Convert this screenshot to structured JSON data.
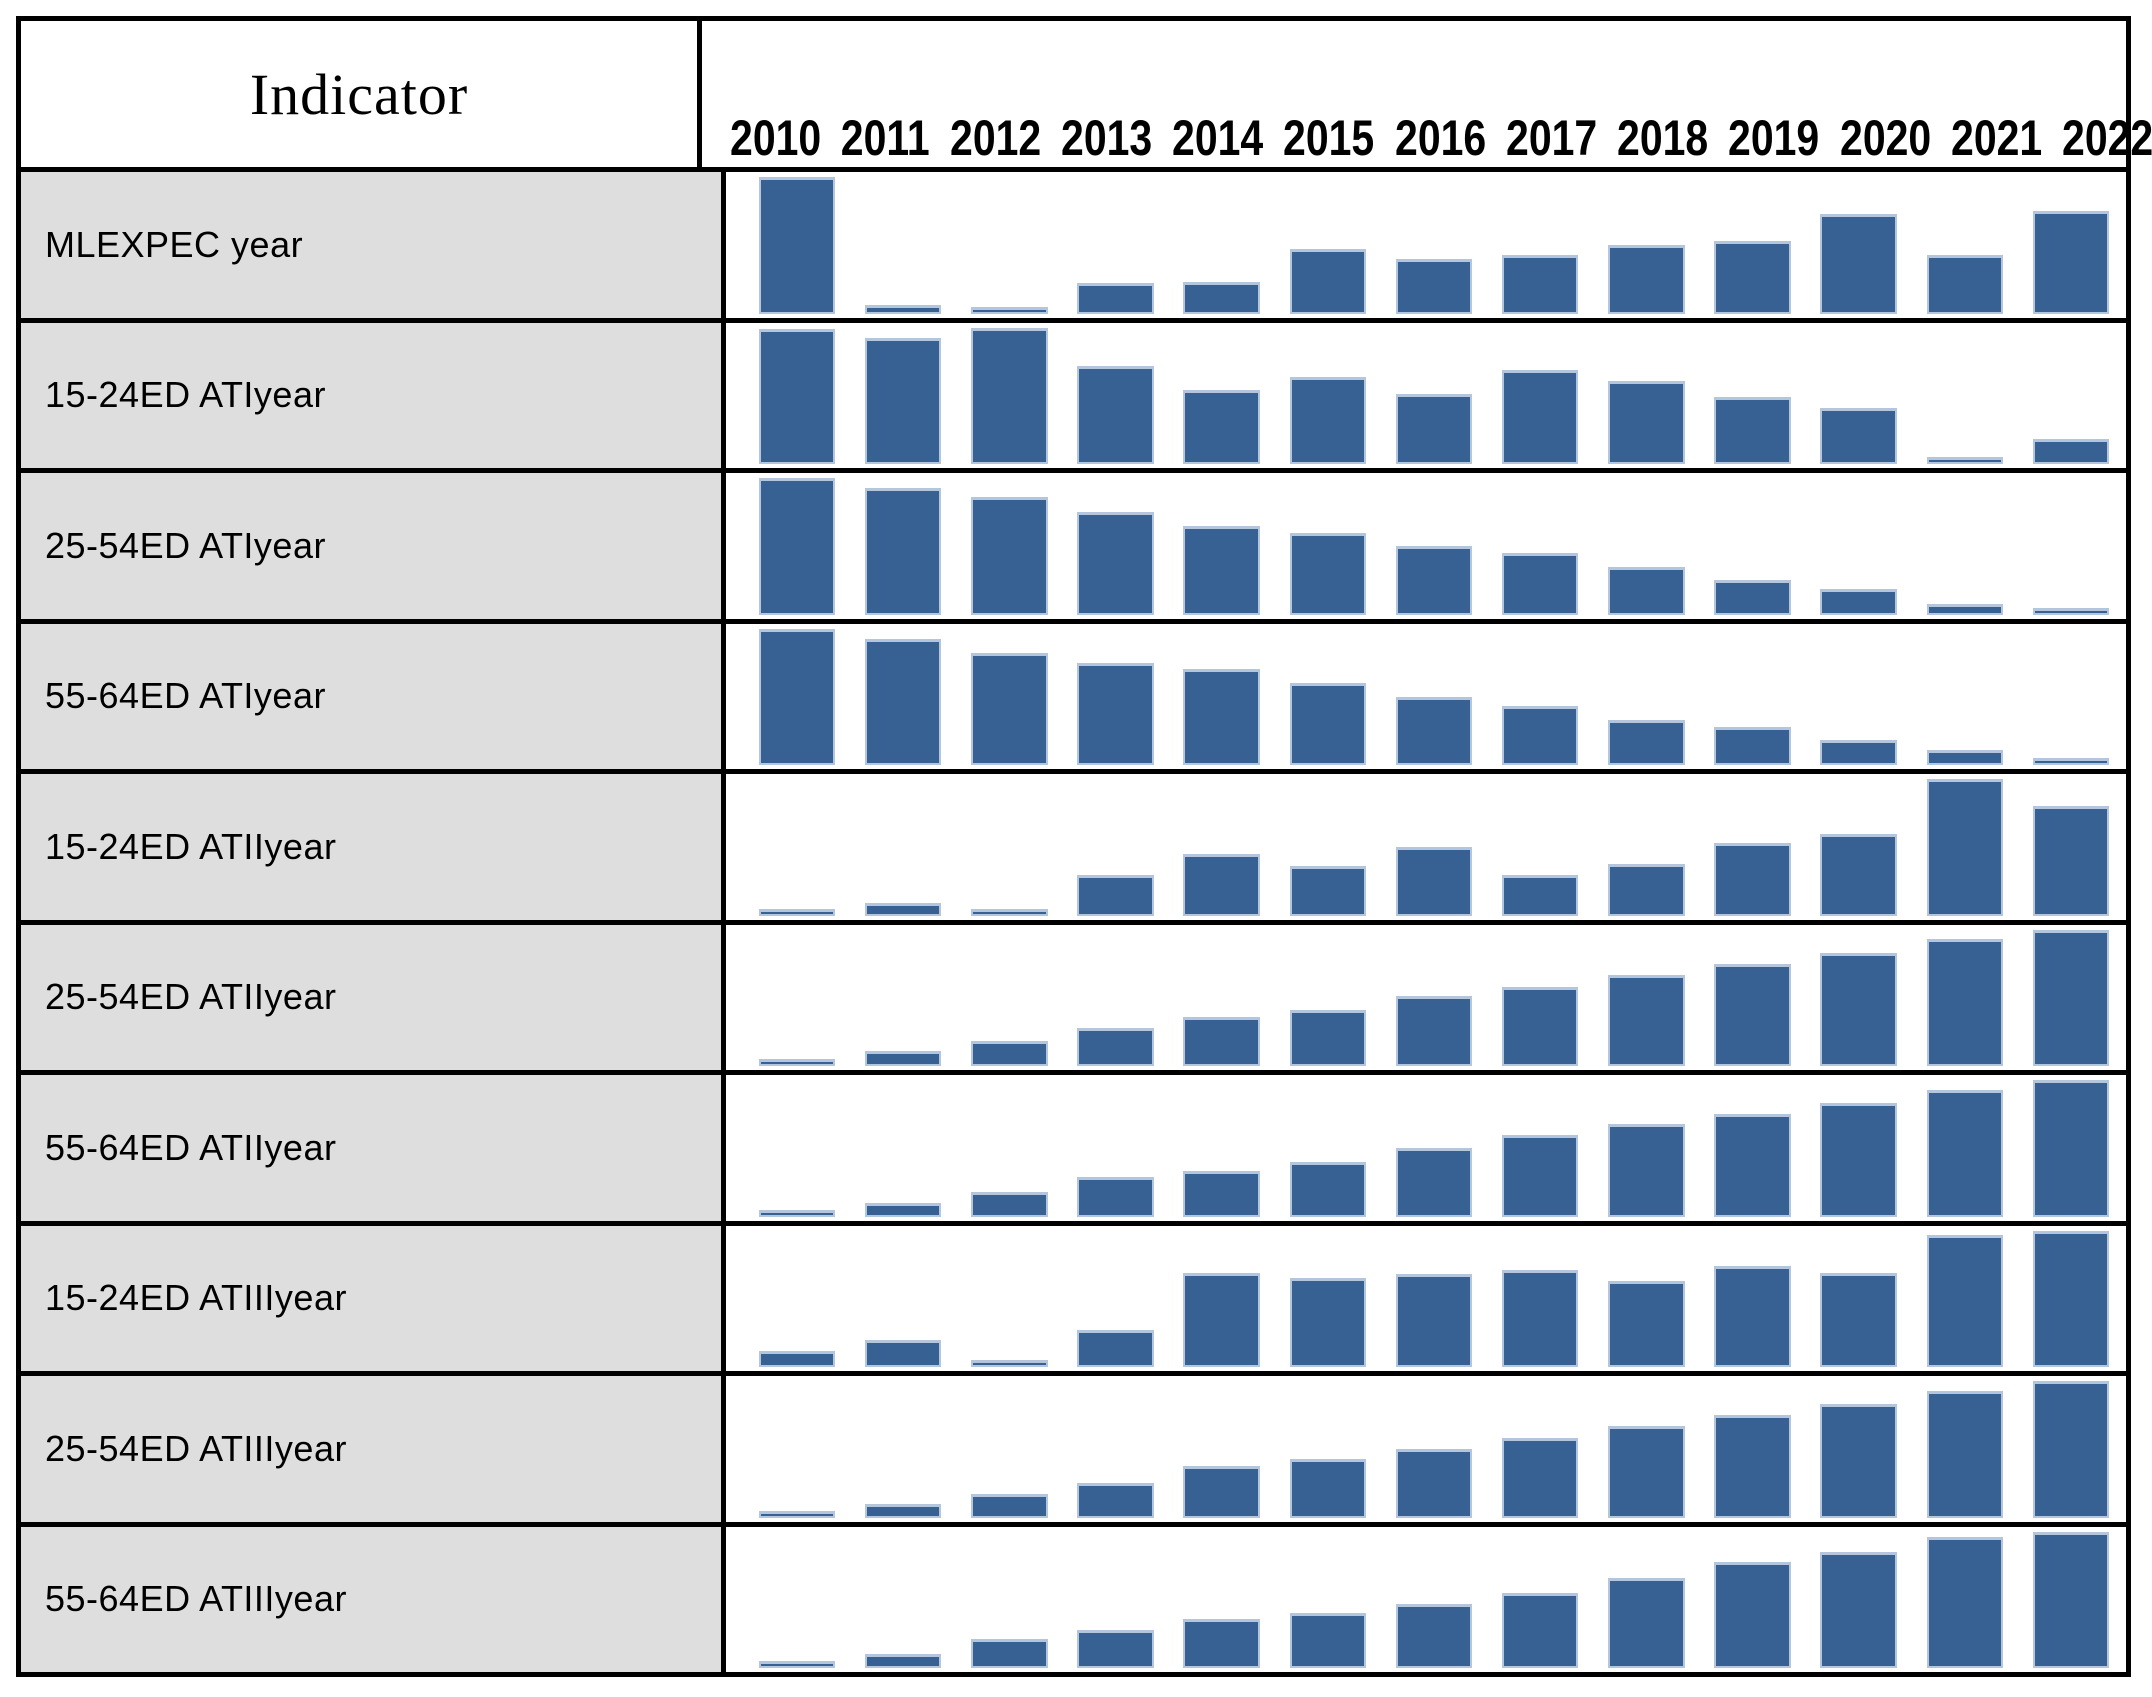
{
  "table": {
    "indicator_header": "Indicator",
    "years": [
      "2010",
      "2011",
      "2012",
      "2013",
      "2014",
      "2015",
      "2016",
      "2017",
      "2018",
      "2019",
      "2020",
      "2021",
      "2022"
    ]
  },
  "colors": {
    "bar_fill": "#376192",
    "bar_edge": "#b3c6de",
    "label_cell_bg": "#dedede",
    "grid_border": "#000000",
    "background": "#ffffff"
  },
  "chart_data": {
    "type": "bar",
    "layout": "table of sparkline bar charts; one row per indicator, one bar per year, legend none, no numeric axis shown",
    "categories": [
      "2010",
      "2011",
      "2012",
      "2013",
      "2014",
      "2015",
      "2016",
      "2017",
      "2018",
      "2019",
      "2020",
      "2021",
      "2022"
    ],
    "value_scale": "relative bar height as fraction of the tallest bar within each row (estimated from pixels; chart shows no numeric axis)",
    "ylim": [
      0,
      1
    ],
    "series": [
      {
        "name": "MLEXPEC year",
        "values": [
          1.0,
          0.06,
          0.03,
          0.22,
          0.23,
          0.47,
          0.4,
          0.43,
          0.5,
          0.53,
          0.73,
          0.43,
          0.75
        ]
      },
      {
        "name": "15-24ED ATIyear",
        "values": [
          0.99,
          0.92,
          1.0,
          0.72,
          0.54,
          0.64,
          0.51,
          0.69,
          0.61,
          0.49,
          0.41,
          0.03,
          0.18
        ]
      },
      {
        "name": "25-54ED ATIyear",
        "values": [
          1.0,
          0.93,
          0.86,
          0.75,
          0.65,
          0.6,
          0.5,
          0.45,
          0.35,
          0.25,
          0.19,
          0.08,
          0.04
        ]
      },
      {
        "name": "55-64ED ATIyear",
        "values": [
          1.0,
          0.92,
          0.82,
          0.75,
          0.7,
          0.6,
          0.5,
          0.43,
          0.33,
          0.28,
          0.18,
          0.11,
          0.03
        ]
      },
      {
        "name": "15-24ED ATIIyear",
        "values": [
          0.03,
          0.09,
          0.04,
          0.3,
          0.45,
          0.36,
          0.5,
          0.3,
          0.38,
          0.53,
          0.6,
          1.0,
          0.8
        ]
      },
      {
        "name": "25-54ED ATIIyear",
        "values": [
          0.03,
          0.11,
          0.18,
          0.28,
          0.36,
          0.41,
          0.51,
          0.58,
          0.67,
          0.75,
          0.83,
          0.93,
          1.0
        ]
      },
      {
        "name": "55-64ED ATIIyear",
        "values": [
          0.03,
          0.1,
          0.18,
          0.29,
          0.33,
          0.4,
          0.5,
          0.6,
          0.68,
          0.75,
          0.83,
          0.93,
          1.0
        ]
      },
      {
        "name": "15-24ED ATIIIyear",
        "values": [
          0.12,
          0.2,
          0.02,
          0.27,
          0.69,
          0.65,
          0.68,
          0.71,
          0.63,
          0.74,
          0.69,
          0.97,
          1.0
        ]
      },
      {
        "name": "25-54ED ATIIIyear",
        "values": [
          0.03,
          0.1,
          0.17,
          0.25,
          0.38,
          0.43,
          0.5,
          0.58,
          0.67,
          0.75,
          0.83,
          0.93,
          1.0
        ]
      },
      {
        "name": "55-64ED ATIIIyear",
        "values": [
          0.03,
          0.1,
          0.21,
          0.28,
          0.36,
          0.4,
          0.47,
          0.55,
          0.66,
          0.78,
          0.85,
          0.96,
          1.0
        ]
      }
    ]
  }
}
